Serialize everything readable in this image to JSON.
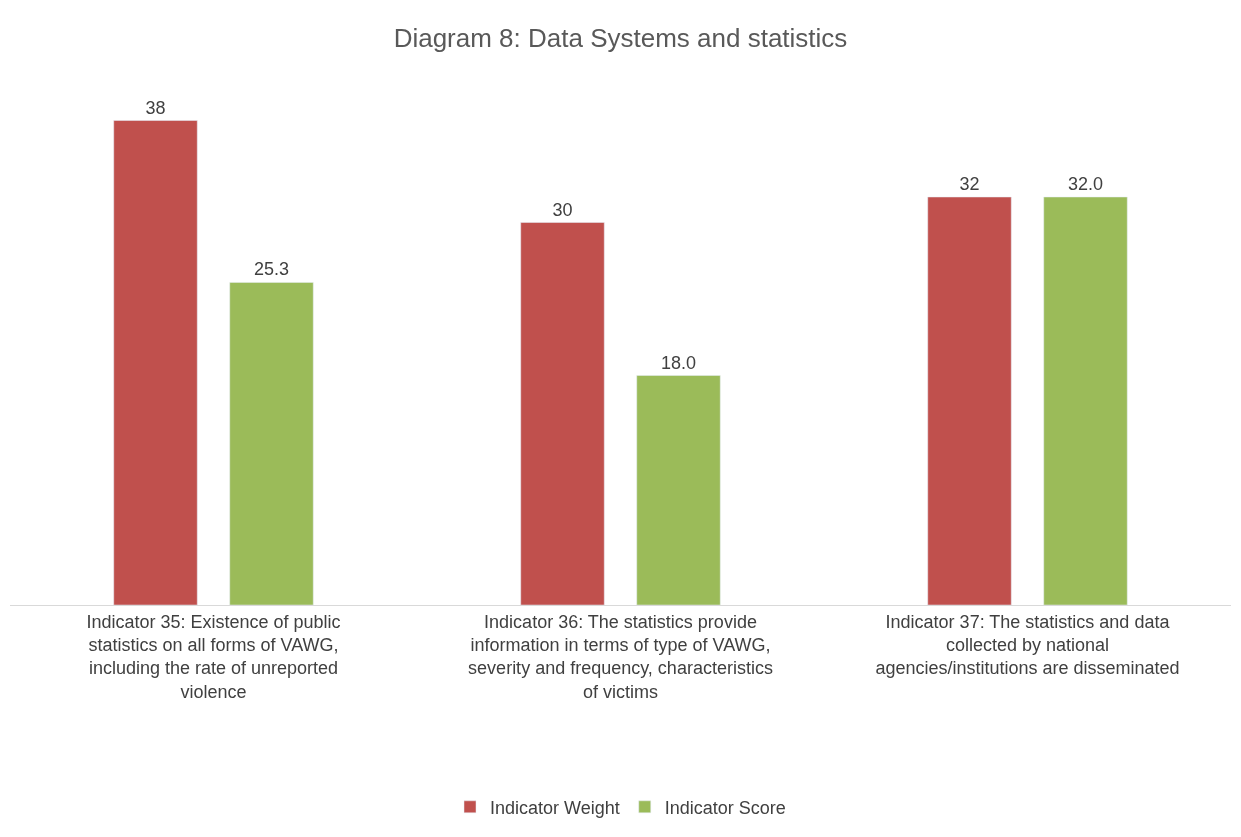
{
  "chart_data": {
    "type": "bar",
    "title": "Diagram 8: Data Systems and statistics",
    "categories": [
      "Indicator 35: Existence of public statistics on all forms of VAWG, including the rate of unreported violence",
      "Indicator 36: The statistics provide information in terms of type of VAWG, severity and frequency, characteristics of victims",
      "Indicator 37: The statistics and data collected by national agencies/institutions are disseminated"
    ],
    "series": [
      {
        "name": "Indicator Weight",
        "color": "#c0504d",
        "values": [
          38,
          30,
          32
        ],
        "value_labels": [
          "38",
          "30",
          "32"
        ]
      },
      {
        "name": "Indicator Score",
        "color": "#9bbb59",
        "values": [
          25.3,
          18.0,
          32.0
        ],
        "value_labels": [
          "25.3",
          "18.0",
          "32.0"
        ]
      }
    ],
    "tick_labels": "x",
    "legend": "bottom"
  }
}
